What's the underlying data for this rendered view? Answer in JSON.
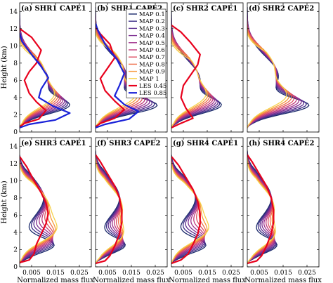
{
  "chart_data": {
    "type": "line",
    "xlabel": "Normalized mass flux",
    "ylabel": "Height (km)",
    "xlim": [
      0,
      0.03
    ],
    "ylim": [
      0,
      15
    ],
    "x_ticks": [
      "0.005",
      "0.015",
      "0.025"
    ],
    "x_tick_values": [
      0.005,
      0.015,
      0.025
    ],
    "y_ticks": [
      "0",
      "2",
      "4",
      "6",
      "8",
      "10",
      "12",
      "14"
    ],
    "y_tick_values": [
      0,
      2,
      4,
      6,
      8,
      10,
      12,
      14
    ],
    "legend": {
      "panel": 1,
      "placement": "top-right",
      "entries": [
        "MAP 0.1",
        "MAP 0.2",
        "MAP 0.3",
        "MAP 0.4",
        "MAP 0.5",
        "MAP 0.6",
        "MAP 0.7",
        "MAP 0.8",
        "MAP 0.9",
        "MAP 1",
        "LES 0.45",
        "LES 0.85"
      ]
    },
    "series_colors": {
      "MAP 0.1": "#1b2a6b",
      "MAP 0.2": "#3a2d86",
      "MAP 0.3": "#5b2e8f",
      "MAP 0.4": "#7d2f92",
      "MAP 0.5": "#a0328c",
      "MAP 0.6": "#c23a7c",
      "MAP 0.7": "#dc4e63",
      "MAP 0.8": "#ee6d49",
      "MAP 0.9": "#f7983a",
      "MAP 1": "#f6d14a",
      "LES 0.45": "#e8001c",
      "LES 0.85": "#1a22d8"
    },
    "panels": [
      {
        "label": "(a)",
        "title": "SHR1 CAPE1",
        "map_profile": {
          "hb": 0.5,
          "peak": [
            0.016,
            0.01
          ],
          "ph": [
            3.0,
            4.0
          ],
          "mid": [
            0.012,
            0.01
          ],
          "mh": [
            6.0,
            7.0
          ],
          "top": [
            14.0,
            10.5
          ]
        },
        "les": [
          {
            "name": "LES 0.45",
            "x": [
              0.0,
              0.002,
              0.008,
              0.011,
              0.007,
              0.004,
              0.002,
              0.004,
              0.007,
              0.009,
              0.005,
              0.0
            ],
            "y": [
              0.6,
              1.0,
              1.5,
              2.5,
              3.5,
              4.5,
              6.0,
              7.0,
              8.0,
              9.5,
              11.0,
              12.0
            ]
          },
          {
            "name": "LES 0.85",
            "x": [
              0.0,
              0.004,
              0.015,
              0.021,
              0.014,
              0.008,
              0.009,
              0.012,
              0.009,
              0.005,
              0.001,
              0.0
            ],
            "y": [
              0.5,
              0.9,
              1.4,
              2.2,
              3.0,
              4.0,
              5.0,
              6.3,
              7.6,
              9.0,
              10.5,
              11.5
            ]
          }
        ]
      },
      {
        "label": "(b)",
        "title": "SHR1 CAPE2",
        "map_profile": {
          "hb": 0.5,
          "peak": [
            0.022,
            0.013
          ],
          "ph": [
            3.0,
            4.0
          ],
          "mid": [
            0.013,
            0.011
          ],
          "mh": [
            6.5,
            7.5
          ],
          "top": [
            14.5,
            11.5
          ]
        },
        "les": [
          {
            "name": "LES 0.45",
            "x": [
              0.0,
              0.002,
              0.008,
              0.012,
              0.008,
              0.004,
              0.002,
              0.005,
              0.008,
              0.006,
              0.002,
              0.0
            ],
            "y": [
              0.6,
              1.0,
              1.6,
              2.6,
              3.6,
              4.8,
              6.2,
              7.4,
              8.6,
              10.2,
              11.4,
              12.2
            ]
          },
          {
            "name": "LES 0.85",
            "x": [
              0.0,
              0.004,
              0.014,
              0.018,
              0.012,
              0.008,
              0.01,
              0.012,
              0.009,
              0.004,
              0.001,
              0.0
            ],
            "y": [
              0.5,
              0.9,
              1.5,
              2.4,
              3.2,
              4.2,
              5.4,
              6.8,
              8.4,
              10.2,
              11.8,
              12.6
            ]
          }
        ]
      },
      {
        "label": "(c)",
        "title": "SHR2 CAPE1",
        "map_profile": {
          "hb": 0.5,
          "peak": [
            0.016,
            0.01
          ],
          "ph": [
            3.0,
            4.0
          ],
          "mid": [
            0.012,
            0.01
          ],
          "mh": [
            6.0,
            7.0
          ],
          "top": [
            14.0,
            10.5
          ]
        },
        "les": [
          {
            "name": "LES 0.45",
            "x": [
              0.0,
              0.003,
              0.009,
              0.006,
              0.004,
              0.005,
              0.008,
              0.011,
              0.012,
              0.008,
              0.004,
              0.0
            ],
            "y": [
              0.5,
              0.9,
              1.6,
              2.8,
              4.0,
              5.4,
              6.6,
              7.8,
              9.0,
              10.4,
              11.6,
              12.4
            ]
          }
        ]
      },
      {
        "label": "(d)",
        "title": "SHR2 CAPE2",
        "map_profile": {
          "hb": 0.5,
          "peak": [
            0.022,
            0.013
          ],
          "ph": [
            3.0,
            4.0
          ],
          "mid": [
            0.013,
            0.011
          ],
          "mh": [
            6.5,
            7.5
          ],
          "top": [
            14.5,
            11.5
          ]
        },
        "les": []
      },
      {
        "label": "(e)",
        "title": "SHR3 CAPE1",
        "map_profile": {
          "hb": 0.4,
          "peak": [
            0.014,
            0.01
          ],
          "ph": [
            2.5,
            4.0
          ],
          "mid": [
            0.01,
            0.012
          ],
          "mh": [
            8.0,
            7.0
          ],
          "top": [
            13.0,
            12.0
          ]
        },
        "les": [
          {
            "name": "LES 0.45",
            "x": [
              0.0,
              0.004,
              0.006,
              0.007,
              0.009,
              0.011,
              0.012,
              0.011,
              0.009,
              0.006,
              0.003,
              0.0
            ],
            "y": [
              0.5,
              0.8,
              1.5,
              2.6,
              3.8,
              5.0,
              6.2,
              7.4,
              8.6,
              10.0,
              11.6,
              12.8
            ]
          }
        ]
      },
      {
        "label": "(f)",
        "title": "SHR3 CAPE2",
        "map_profile": {
          "hb": 0.4,
          "peak": [
            0.012,
            0.008
          ],
          "ph": [
            2.5,
            3.5
          ],
          "mid": [
            0.01,
            0.011
          ],
          "mh": [
            8.0,
            7.0
          ],
          "top": [
            13.5,
            12.5
          ]
        },
        "les": [
          {
            "name": "LES 0.45",
            "x": [
              0.0,
              0.004,
              0.006,
              0.008,
              0.01,
              0.011,
              0.011,
              0.01,
              0.008,
              0.005,
              0.002,
              0.0
            ],
            "y": [
              0.4,
              0.7,
              1.3,
              2.4,
              3.8,
              5.2,
              6.6,
              8.0,
              9.4,
              10.8,
              12.2,
              13.0
            ]
          }
        ]
      },
      {
        "label": "(g)",
        "title": "SHR4 CAPE1",
        "map_profile": {
          "hb": 0.4,
          "peak": [
            0.014,
            0.01
          ],
          "ph": [
            2.5,
            4.0
          ],
          "mid": [
            0.01,
            0.012
          ],
          "mh": [
            8.0,
            7.0
          ],
          "top": [
            13.0,
            12.0
          ]
        },
        "les": [
          {
            "name": "LES 0.45",
            "x": [
              0.0,
              0.004,
              0.007,
              0.009,
              0.011,
              0.012,
              0.012,
              0.011,
              0.009,
              0.006,
              0.003,
              0.0
            ],
            "y": [
              0.4,
              0.8,
              1.5,
              2.6,
              3.8,
              5.0,
              6.2,
              7.6,
              9.0,
              10.4,
              11.8,
              12.8
            ]
          }
        ]
      },
      {
        "label": "(h)",
        "title": "SHR4 CAPE2",
        "map_profile": {
          "hb": 0.4,
          "peak": [
            0.012,
            0.008
          ],
          "ph": [
            2.5,
            3.5
          ],
          "mid": [
            0.01,
            0.011
          ],
          "mh": [
            8.0,
            7.0
          ],
          "top": [
            13.5,
            12.5
          ]
        },
        "les": [
          {
            "name": "LES 0.45",
            "x": [
              0.0,
              0.004,
              0.006,
              0.008,
              0.01,
              0.011,
              0.011,
              0.01,
              0.008,
              0.005,
              0.002,
              0.0
            ],
            "y": [
              0.4,
              0.7,
              1.3,
              2.4,
              3.8,
              5.2,
              6.6,
              8.0,
              9.4,
              10.8,
              12.2,
              13.0
            ]
          }
        ]
      }
    ]
  }
}
